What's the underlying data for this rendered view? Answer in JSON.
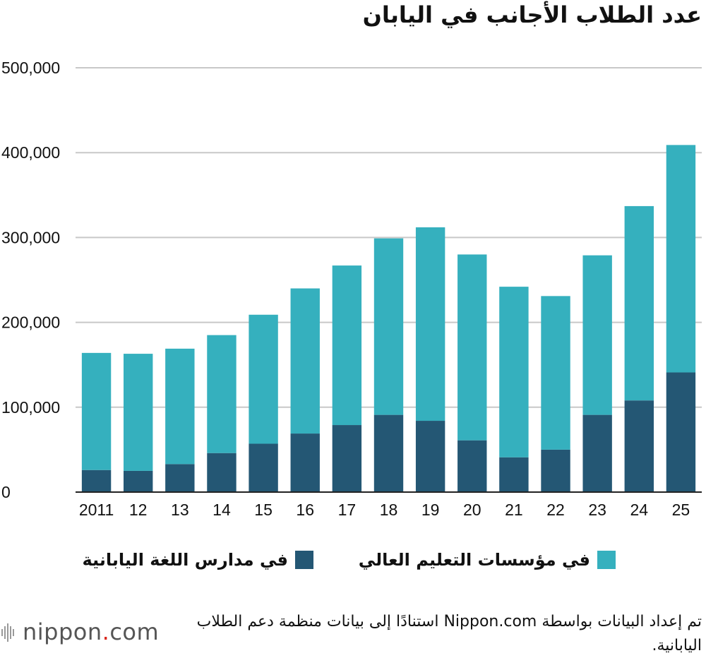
{
  "chart_data": {
    "type": "bar",
    "stacked": true,
    "title": "عدد الطلاب الأجانب في اليابان",
    "categories": [
      "2011",
      "12",
      "13",
      "14",
      "15",
      "16",
      "17",
      "18",
      "19",
      "20",
      "21",
      "22",
      "23",
      "24",
      "25"
    ],
    "series": [
      {
        "name": "في مدارس اللغة اليابانية",
        "color": "#245774",
        "values": [
          26000,
          25000,
          33000,
          46000,
          57000,
          69000,
          79000,
          91000,
          84000,
          61000,
          41000,
          50000,
          91000,
          108000,
          141000
        ]
      },
      {
        "name": "في مؤسسات التعليم العالي",
        "color": "#35b0be",
        "values": [
          138000,
          138000,
          136000,
          139000,
          152000,
          171000,
          188000,
          208000,
          228000,
          219000,
          201000,
          181000,
          188000,
          229000,
          268000
        ]
      }
    ],
    "yticks": [
      "0",
      "100,000",
      "200,000",
      "300,000",
      "400,000",
      "500,000"
    ],
    "ylim": [
      0,
      500000
    ],
    "grid": true,
    "legend_position": "bottom"
  },
  "footer": {
    "source": "تم إعداد البيانات بواسطة Nippon.com استنادًا إلى بيانات منظمة دعم الطلاب اليابانية."
  },
  "logo": {
    "name": "nippon",
    "suffix": ".com"
  },
  "colors": {
    "grid": "#c8c8c8",
    "axis": "#222222"
  }
}
